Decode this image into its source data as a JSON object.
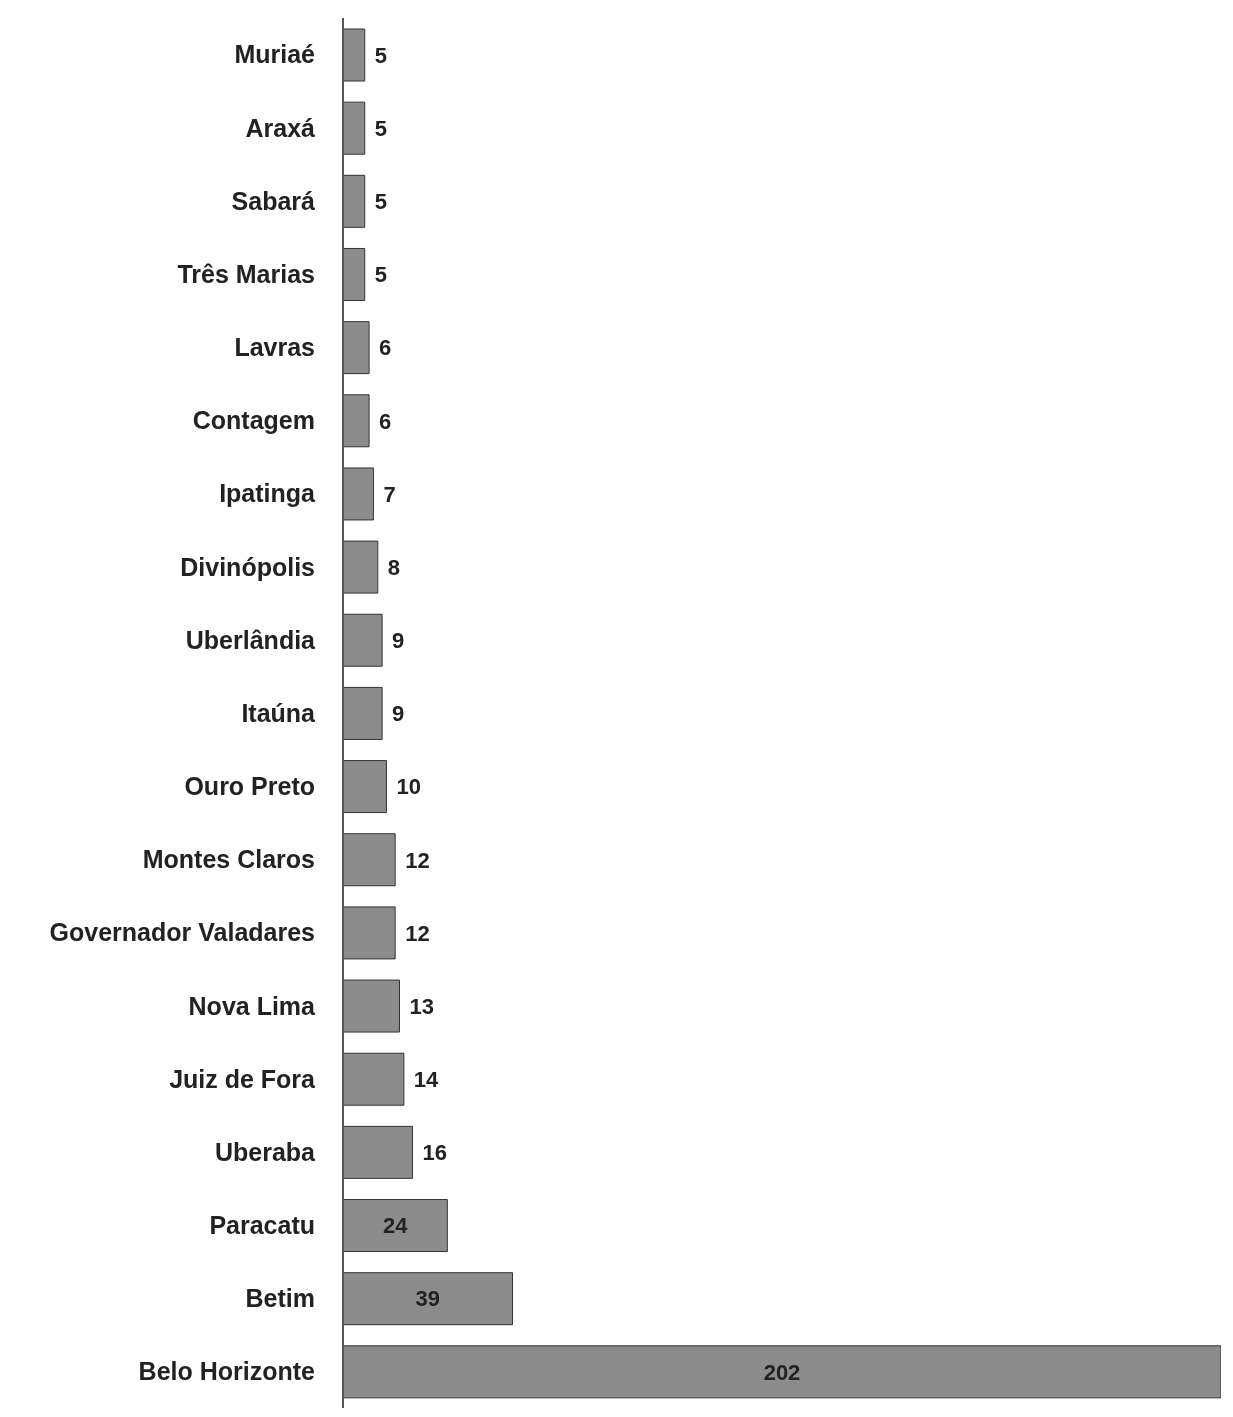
{
  "chart_data": {
    "type": "bar",
    "orientation": "horizontal",
    "categories": [
      "Muriaé",
      "Araxá",
      "Sabará",
      "Três Marias",
      "Lavras",
      "Contagem",
      "Ipatinga",
      "Divinópolis",
      "Uberlândia",
      "Itaúna",
      "Ouro Preto",
      "Montes Claros",
      "Governador Valadares",
      "Nova Lima",
      "Juiz de Fora",
      "Uberaba",
      "Paracatu",
      "Betim",
      "Belo Horizonte"
    ],
    "values": [
      5,
      5,
      5,
      5,
      6,
      6,
      7,
      8,
      9,
      9,
      10,
      12,
      12,
      13,
      14,
      16,
      24,
      39,
      202
    ],
    "color": "#8c8c8c",
    "data_labels": true
  }
}
